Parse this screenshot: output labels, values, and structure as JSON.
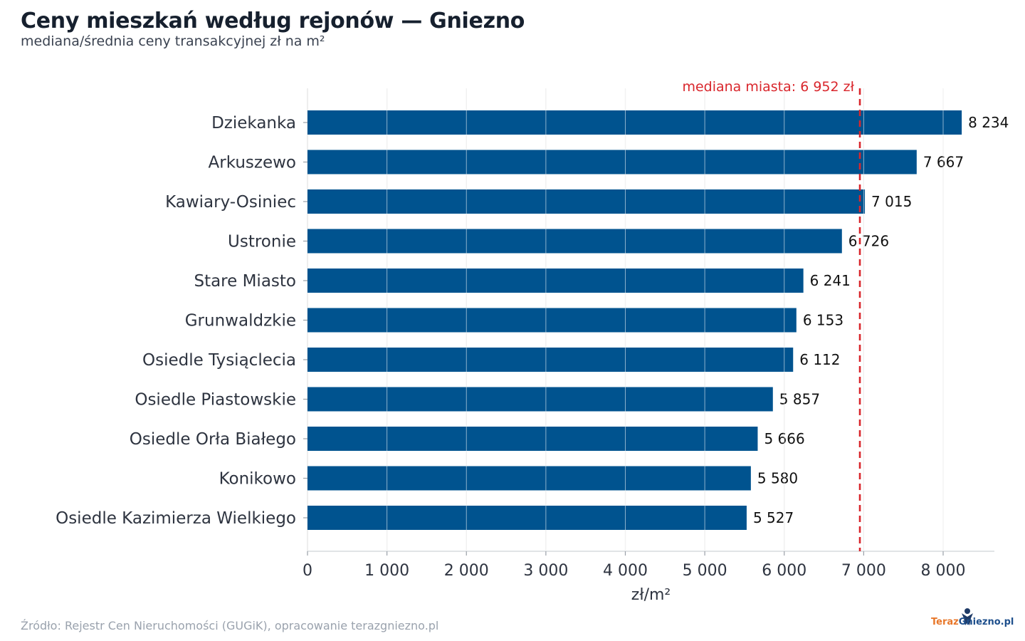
{
  "header": {
    "title": "Ceny mieszkań według rejonów — Gniezno",
    "subtitle": "mediana/średnia ceny transakcyjnej zł na m²"
  },
  "footer": {
    "source": "Źródło: Rejestr Cen Nieruchomości (GUGiK), opracowanie terazgniezno.pl",
    "logo_part1": "Teraz",
    "logo_part2": "Gniezno",
    "logo_part3": ".pl"
  },
  "colors": {
    "bar": "#00538f",
    "reference_line": "#d9262c",
    "grid": "#e3e3e3",
    "text": "#2e3440"
  },
  "chart_data": {
    "type": "bar",
    "orientation": "horizontal",
    "title": "Ceny mieszkań według rejonów — Gniezno",
    "subtitle": "mediana/średnia ceny transakcyjnej zł na m²",
    "xlabel": "zł/m²",
    "ylabel": "",
    "xlim": [
      0,
      8650
    ],
    "xticks": [
      0,
      1000,
      2000,
      3000,
      4000,
      5000,
      6000,
      7000,
      8000
    ],
    "xtick_labels": [
      "0",
      "1 000",
      "2 000",
      "3 000",
      "4 000",
      "5 000",
      "6 000",
      "7 000",
      "8 000"
    ],
    "grid": true,
    "categories": [
      "Dziekanka",
      "Arkuszewo",
      "Kawiary-Osiniec",
      "Ustronie",
      "Stare Miasto",
      "Grunwaldzkie",
      "Osiedle Tysiąclecia",
      "Osiedle Piastowskie",
      "Osiedle Orła Białego",
      "Konikowo",
      "Osiedle Kazimierza Wielkiego"
    ],
    "values": [
      8234,
      7667,
      7015,
      6726,
      6241,
      6153,
      6112,
      5857,
      5666,
      5580,
      5527
    ],
    "value_labels": [
      "8 234",
      "7 667",
      "7 015",
      "6 726",
      "6 241",
      "6 153",
      "6 112",
      "5 857",
      "5 666",
      "5 580",
      "5 527"
    ],
    "reference_line": {
      "value": 6952,
      "label": "mediana miasta: 6 952 zł"
    }
  }
}
